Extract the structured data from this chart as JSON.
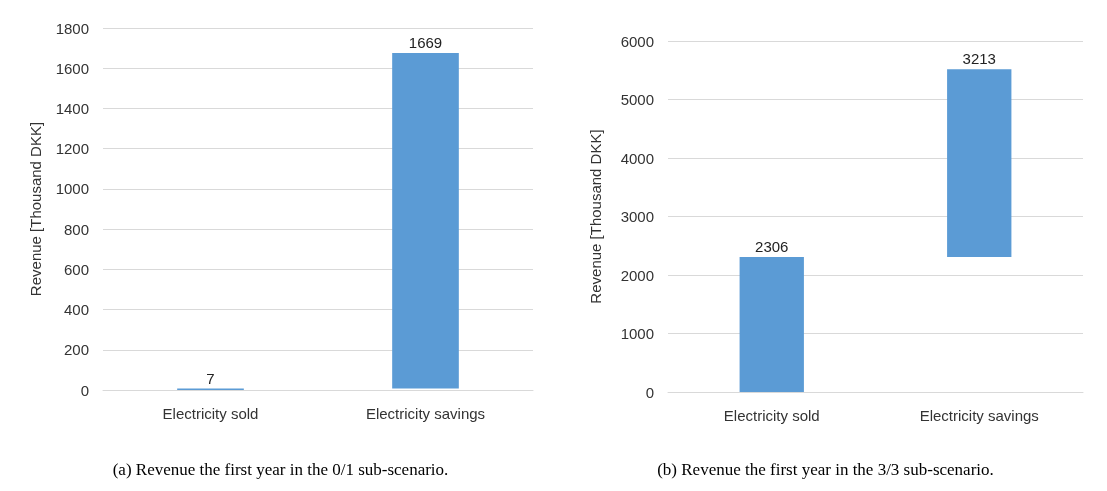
{
  "chart_data": [
    {
      "type": "bar",
      "title": "(a) Revenue the first year in the 0/1 sub-scenario.",
      "ylabel": "Revenue [Thousand DKK]",
      "categories": [
        "Electricity sold",
        "Electricity savings"
      ],
      "values": [
        7,
        1669
      ],
      "base": [
        0,
        7
      ],
      "color": "#5b9bd5",
      "data_labels": true,
      "ylim": [
        0,
        1800
      ],
      "yticks": [
        0,
        200,
        400,
        600,
        800,
        1000,
        1200,
        1400,
        1600,
        1800
      ],
      "grid": "y"
    },
    {
      "type": "bar",
      "title": "(b) Revenue the first year in the 3/3 sub-scenario.",
      "ylabel": "Revenue [Thousand DKK]",
      "categories": [
        "Electricity sold",
        "Electricity savings"
      ],
      "values": [
        2306,
        3213
      ],
      "base": [
        0,
        2306
      ],
      "color": "#5b9bd5",
      "data_labels": true,
      "ylim": [
        0,
        6000
      ],
      "yticks": [
        0,
        1000,
        2000,
        3000,
        4000,
        5000,
        6000
      ],
      "grid": "y"
    }
  ]
}
